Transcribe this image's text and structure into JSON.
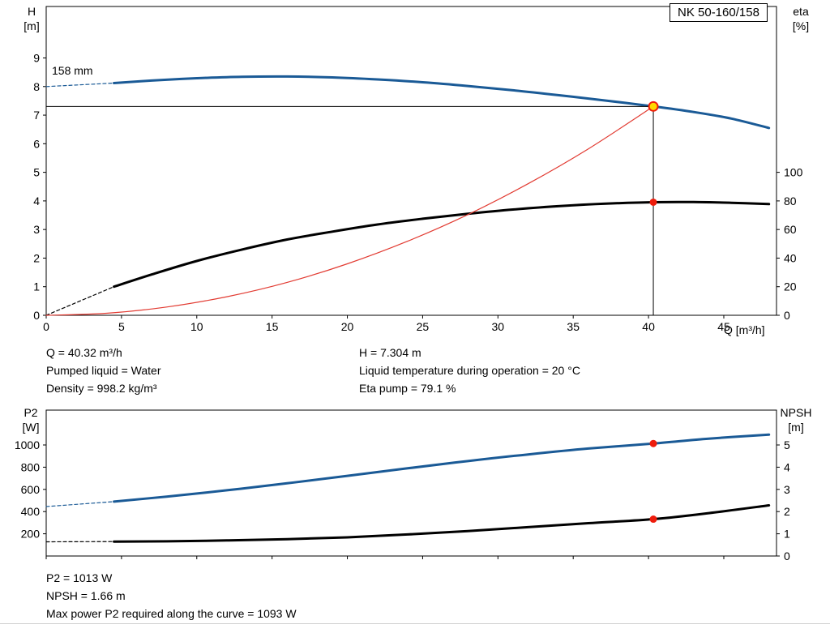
{
  "header": {
    "pump_model": "NK 50-160/158"
  },
  "labels": {
    "top_left_axis_title": "H",
    "top_left_axis_unit": "[m]",
    "top_right_axis_title": "eta",
    "top_right_axis_unit": "[%]",
    "x_axis_label": "Q [m³/h]",
    "impeller_diameter": "158 mm",
    "bottom_left_axis_title": "P2",
    "bottom_left_axis_unit": "[W]",
    "bottom_right_axis_title": "NPSH",
    "bottom_right_axis_unit": "[m]"
  },
  "operating_info": {
    "left": [
      "Q = 40.32 m³/h",
      "Pumped liquid = Water",
      "Density = 998.2 kg/m³"
    ],
    "right": [
      "H = 7.304 m",
      "Liquid temperature during operation = 20 °C",
      "Eta pump = 79.1 %"
    ]
  },
  "results": [
    "P2 = 1013 W",
    "NPSH = 1.66 m",
    "Max power P2 required along the curve = 1093 W"
  ],
  "colors": {
    "curve_blue": "#1a5a96",
    "curve_black": "#000000",
    "system_red": "#e23b32",
    "marker_red": "#ee1c0c",
    "marker_yellow": "#ffd800"
  },
  "chart_data": [
    {
      "type": "line",
      "title": "Pump curve NK 50-160/158 (head and efficiency vs flow)",
      "x_axis": {
        "label": "Q [m³/h]",
        "min": 0,
        "max": 48.5,
        "ticks": [
          0,
          5,
          10,
          15,
          20,
          25,
          30,
          35,
          40,
          45
        ],
        "show_labels": true
      },
      "left_axis": {
        "title": "H [m]",
        "min": 0,
        "max": 10.8,
        "ticks": [
          0,
          1,
          2,
          3,
          4,
          5,
          6,
          7,
          8,
          9
        ]
      },
      "right_axis": {
        "title": "eta [%]",
        "min": 0,
        "max": 216,
        "ticks": [
          0,
          20,
          40,
          60,
          80,
          100
        ]
      },
      "duty_point": {
        "q_m3h": 40.32,
        "h_m": 7.304,
        "eta_pct": 79.1,
        "impeller": "158 mm"
      },
      "series": [
        {
          "name": "head-curve",
          "axis": "left",
          "color": "#1a5a96",
          "width": 3,
          "segments": [
            {
              "dash": "4,3",
              "width": 1.2,
              "points": [
                [
                  0,
                  8.0
                ],
                [
                  4.5,
                  8.12
                ]
              ]
            },
            {
              "points": [
                [
                  4.5,
                  8.12
                ],
                [
                  7,
                  8.21
                ],
                [
                  10,
                  8.29
                ],
                [
                  13,
                  8.34
                ],
                [
                  16,
                  8.35
                ],
                [
                  19,
                  8.32
                ],
                [
                  22,
                  8.25
                ],
                [
                  25,
                  8.15
                ],
                [
                  28,
                  8.02
                ],
                [
                  31,
                  7.87
                ],
                [
                  34,
                  7.7
                ],
                [
                  37,
                  7.52
                ],
                [
                  40.32,
                  7.304
                ],
                [
                  43,
                  7.11
                ],
                [
                  45.5,
                  6.88
                ],
                [
                  48,
                  6.55
                ]
              ]
            }
          ]
        },
        {
          "name": "efficiency-curve",
          "axis": "right",
          "color": "#000000",
          "width": 3,
          "segments": [
            {
              "dash": "4,3",
              "width": 1.2,
              "points": [
                [
                  0,
                  0
                ],
                [
                  4.5,
                  20
                ]
              ]
            },
            {
              "points": [
                [
                  4.5,
                  20
                ],
                [
                  7,
                  28.5
                ],
                [
                  10,
                  38
                ],
                [
                  13,
                  46
                ],
                [
                  16,
                  53
                ],
                [
                  19,
                  58.5
                ],
                [
                  22,
                  63.5
                ],
                [
                  25,
                  67.5
                ],
                [
                  28,
                  71
                ],
                [
                  31,
                  74
                ],
                [
                  34,
                  76.3
                ],
                [
                  37,
                  78
                ],
                [
                  40.32,
                  79.1
                ],
                [
                  43,
                  79.2
                ],
                [
                  45.5,
                  78.7
                ],
                [
                  48,
                  77.8
                ]
              ]
            }
          ]
        },
        {
          "name": "system-curve",
          "axis": "left",
          "color": "#e23b32",
          "width": 1.2,
          "segments": [
            {
              "points": [
                [
                  0,
                  0
                ],
                [
                  4,
                  0.07
                ],
                [
                  8,
                  0.29
                ],
                [
                  12,
                  0.65
                ],
                [
                  16,
                  1.15
                ],
                [
                  20,
                  1.8
                ],
                [
                  24,
                  2.59
                ],
                [
                  28,
                  3.52
                ],
                [
                  32,
                  4.6
                ],
                [
                  36,
                  5.82
                ],
                [
                  40.32,
                  7.304
                ]
              ]
            }
          ]
        }
      ],
      "ref_lines": [
        {
          "name": "duty-head-refline",
          "axis": "left",
          "from": [
            0,
            7.304
          ],
          "to": [
            40.32,
            7.304
          ],
          "color": "#000000",
          "width": 1
        },
        {
          "name": "duty-flow-refline",
          "axis": "left",
          "from": [
            40.32,
            7.304
          ],
          "to": [
            40.32,
            0
          ],
          "color": "#000000",
          "width": 1
        }
      ],
      "markers": [
        {
          "name": "duty-point-head",
          "axis": "left",
          "x": 40.32,
          "y": 7.304,
          "r": 5.5,
          "fill": "#ffd800",
          "stroke": "#ee1c0c",
          "stroke_width": 2
        },
        {
          "name": "duty-point-eta",
          "axis": "right",
          "x": 40.32,
          "y": 79.1,
          "r": 4.5,
          "fill": "#ee1c0c"
        }
      ]
    },
    {
      "type": "line",
      "title": "Power P2 and NPSH vs flow",
      "x_axis": {
        "label": "",
        "min": 0,
        "max": 48.5,
        "ticks": [
          0,
          5,
          10,
          15,
          20,
          25,
          30,
          35,
          40,
          45
        ],
        "show_labels": false
      },
      "left_axis": {
        "title": "P2 [W]",
        "min": 0,
        "max": 1314,
        "ticks": [
          200,
          400,
          600,
          800,
          1000
        ]
      },
      "right_axis": {
        "title": "NPSH [m]",
        "min": 0,
        "max": 6.57,
        "ticks": [
          0,
          1,
          2,
          3,
          4,
          5
        ]
      },
      "duty_point": {
        "q_m3h": 40.32,
        "p2_w": 1013,
        "npsh_m": 1.66,
        "max_p2_w": 1093
      },
      "series": [
        {
          "name": "p2-curve",
          "axis": "left",
          "color": "#1a5a96",
          "width": 3,
          "segments": [
            {
              "dash": "4,3",
              "width": 1.2,
              "points": [
                [
                  0,
                  445
                ],
                [
                  4.5,
                  490
                ]
              ]
            },
            {
              "points": [
                [
                  4.5,
                  490
                ],
                [
                  8,
                  535
                ],
                [
                  12,
                  592
                ],
                [
                  16,
                  655
                ],
                [
                  20,
                  722
                ],
                [
                  24,
                  790
                ],
                [
                  28,
                  855
                ],
                [
                  32,
                  915
                ],
                [
                  36,
                  968
                ],
                [
                  40.32,
                  1013
                ],
                [
                  44,
                  1057
                ],
                [
                  48,
                  1093
                ]
              ]
            }
          ]
        },
        {
          "name": "npsh-curve",
          "axis": "right",
          "color": "#000000",
          "width": 3,
          "segments": [
            {
              "dash": "4,3",
              "width": 1.2,
              "points": [
                [
                  0,
                  0.64
                ],
                [
                  4.5,
                  0.65
                ]
              ]
            },
            {
              "points": [
                [
                  4.5,
                  0.65
                ],
                [
                  8,
                  0.66
                ],
                [
                  12,
                  0.7
                ],
                [
                  16,
                  0.76
                ],
                [
                  20,
                  0.84
                ],
                [
                  24,
                  0.97
                ],
                [
                  28,
                  1.12
                ],
                [
                  32,
                  1.3
                ],
                [
                  36,
                  1.48
                ],
                [
                  40.32,
                  1.66
                ],
                [
                  44,
                  1.93
                ],
                [
                  48,
                  2.28
                ]
              ]
            }
          ]
        }
      ],
      "ref_lines": [],
      "markers": [
        {
          "name": "duty-point-p2",
          "axis": "left",
          "x": 40.32,
          "y": 1013,
          "r": 4.5,
          "fill": "#ee1c0c"
        },
        {
          "name": "duty-point-npsh",
          "axis": "right",
          "x": 40.32,
          "y": 1.66,
          "r": 4.5,
          "fill": "#ee1c0c"
        }
      ]
    }
  ]
}
